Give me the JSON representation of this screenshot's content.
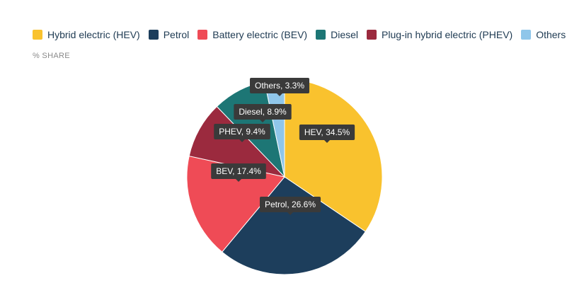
{
  "chart_data": {
    "type": "pie",
    "title": "",
    "subtitle": "% SHARE",
    "series": [
      {
        "name": "Hybrid electric (HEV)",
        "label": "HEV, 34.5%",
        "value": 34.5,
        "color": "#f9c22e"
      },
      {
        "name": "Petrol",
        "label": "Petrol, 26.6%",
        "value": 26.6,
        "color": "#1d3e5c"
      },
      {
        "name": "Battery electric (BEV)",
        "label": "BEV, 17.4%",
        "value": 17.4,
        "color": "#ef4b56"
      },
      {
        "name": "Plug-in hybrid electric (PHEV)",
        "label": "PHEV, 9.4%",
        "value": 9.4,
        "color": "#9b2a3e"
      },
      {
        "name": "Diesel",
        "label": "Diesel, 8.9%",
        "value": 8.9,
        "color": "#1d7675"
      },
      {
        "name": "Others",
        "label": "Others, 3.3%",
        "value": 3.3,
        "color": "#8fc6ea"
      }
    ],
    "legend": [
      {
        "name": "Hybrid electric (HEV)",
        "color": "#f9c22e"
      },
      {
        "name": "Petrol",
        "color": "#1d3e5c"
      },
      {
        "name": "Battery electric (BEV)",
        "color": "#ef4b56"
      },
      {
        "name": "Diesel",
        "color": "#1d7675"
      },
      {
        "name": "Plug-in hybrid electric (PHEV)",
        "color": "#9b2a3e"
      },
      {
        "name": "Others",
        "color": "#8fc6ea"
      }
    ],
    "legend_position": "top-left"
  }
}
